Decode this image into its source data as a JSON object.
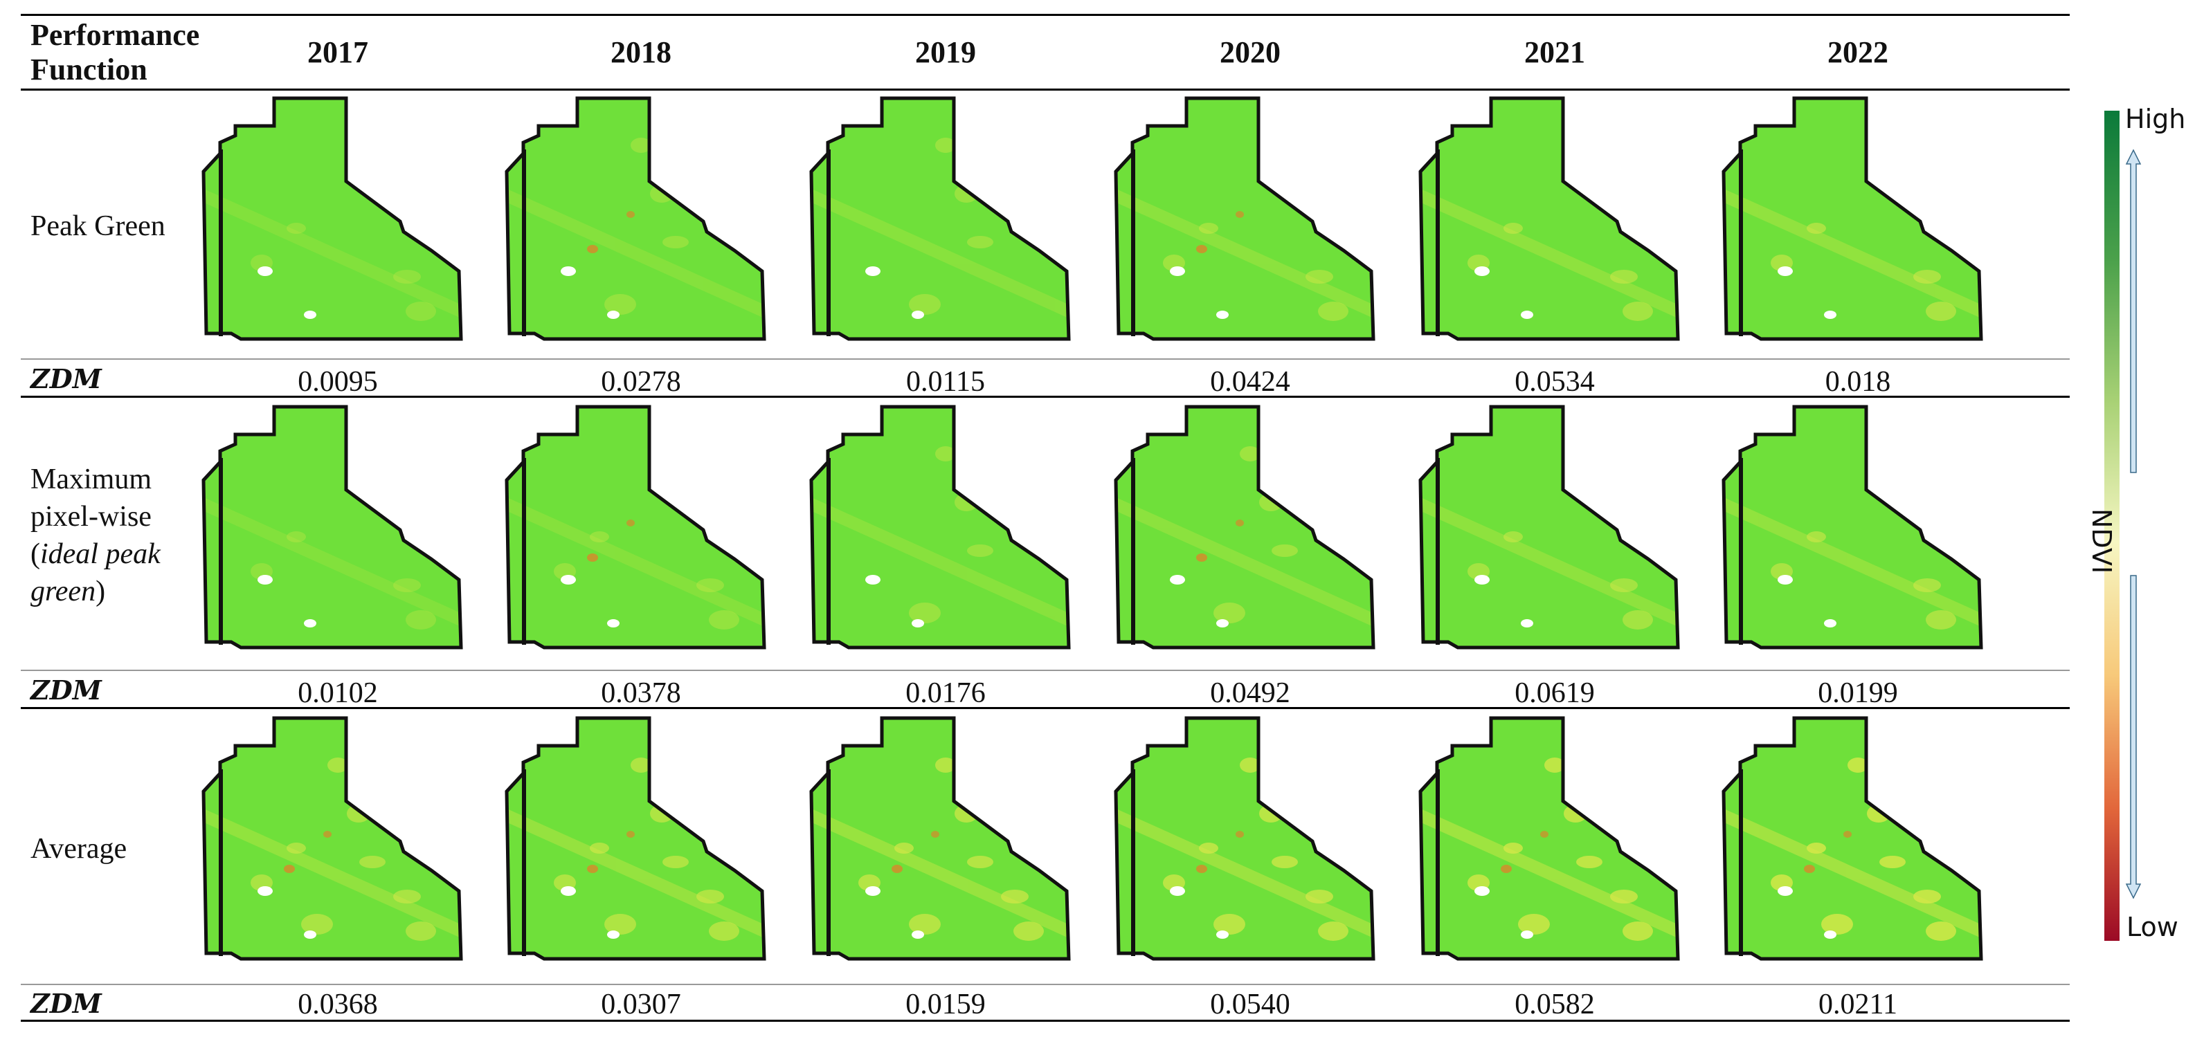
{
  "header": {
    "first_col_line1": "Performance",
    "first_col_line2": "Function",
    "years": [
      "2017",
      "2018",
      "2019",
      "2020",
      "2021",
      "2022"
    ]
  },
  "rows": [
    {
      "label_lines": [
        "Peak Green"
      ],
      "zdm_label": "ZDM",
      "zdm_values": [
        "0.0095",
        "0.0278",
        "0.0115",
        "0.0424",
        "0.0534",
        "0.018"
      ]
    },
    {
      "label_lines": [
        "Maximum",
        "pixel-wise",
        "(",
        "ideal peak",
        "green",
        ")"
      ],
      "zdm_label": "ZDM",
      "zdm_values": [
        "0.0102",
        "0.0378",
        "0.0176",
        "0.0492",
        "0.0619",
        "0.0199"
      ]
    },
    {
      "label_lines": [
        "Average"
      ],
      "zdm_label": "ZDM",
      "zdm_values": [
        "0.0368",
        "0.0307",
        "0.0159",
        "0.0540",
        "0.0582",
        "0.0211"
      ]
    }
  ],
  "colorbar": {
    "high_label": "High",
    "low_label": "Low",
    "axis_label": "NDVI",
    "colors": {
      "high": "#0b7a3a",
      "mid": "#f6f6c2",
      "low": "#9b0a25"
    }
  },
  "map_colors": {
    "base": "#6fe03a",
    "patch": "#d8e84a",
    "hot": "#e87a2a",
    "outline": "#111111"
  }
}
